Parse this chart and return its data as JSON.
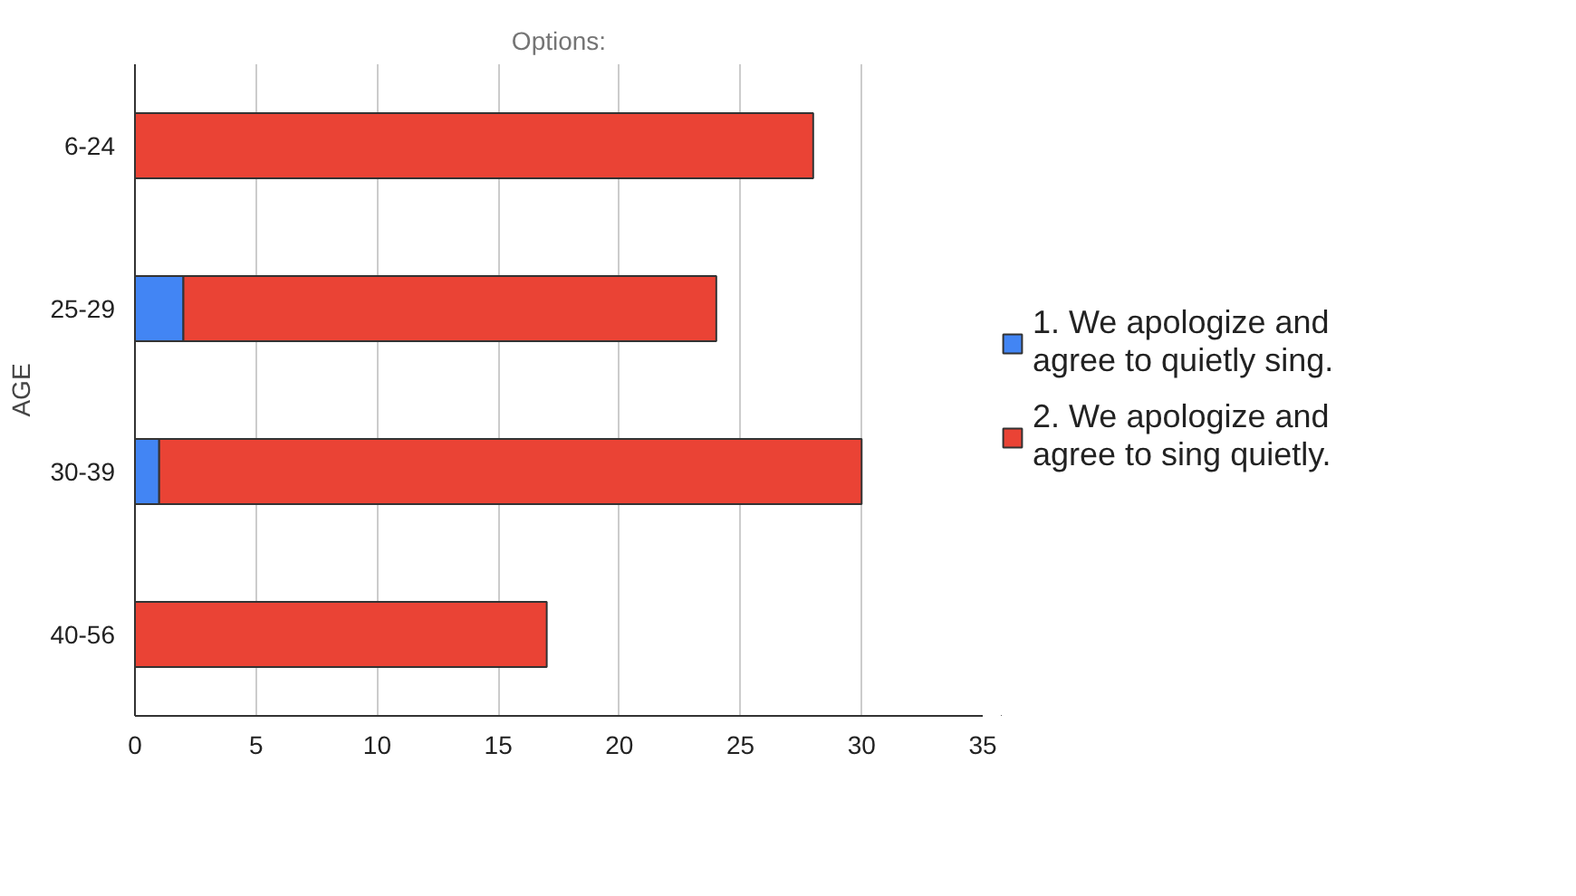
{
  "chart_data": {
    "type": "bar",
    "orientation": "horizontal",
    "stacked": true,
    "title": "Options:",
    "ylabel": "AGE",
    "categories": [
      "6-24",
      "25-29",
      "30-39",
      "40-56"
    ],
    "series": [
      {
        "name": "1. We apologize and agree to quietly sing.",
        "color": "#4285f4",
        "values": [
          0,
          2,
          1,
          0
        ]
      },
      {
        "name": "2. We apologize and agree to sing quietly.",
        "color": "#ea4335",
        "values": [
          28,
          22,
          29,
          17
        ]
      }
    ],
    "xlim": [
      0,
      35
    ],
    "xticks": [
      0,
      5,
      10,
      15,
      20,
      25,
      30,
      35
    ],
    "grid": "x",
    "legend": "right"
  }
}
